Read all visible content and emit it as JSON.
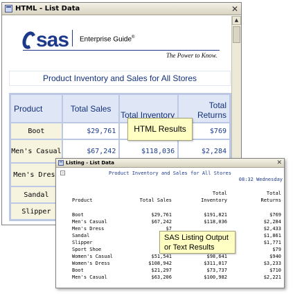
{
  "html_window": {
    "title": "HTML - List Data",
    "close_glyph": "✕",
    "product_name": "Enterprise Guide",
    "trademark": "®",
    "tagline": "The Power to Know.",
    "logo_text": "sas",
    "report_title": "Product Inventory and Sales for All Stores",
    "columns": [
      "Product",
      "Total Sales",
      "Total Inventory",
      "Total Returns"
    ],
    "rows": [
      {
        "product": "Boot",
        "sales": "$29,761",
        "inventory": "",
        "returns": "$769"
      },
      {
        "product": "Men's Casual",
        "sales": "$67,242",
        "inventory": "$118,036",
        "returns": "$2,284"
      },
      {
        "product": "Men's Dress",
        "sales": "",
        "inventory": "",
        "returns": ""
      },
      {
        "product": "Sandal",
        "sales": "",
        "inventory": "",
        "returns": ""
      },
      {
        "product": "Slipper",
        "sales": "",
        "inventory": "",
        "returns": ""
      }
    ],
    "callout": "HTML Results"
  },
  "listing_window": {
    "title": "Listing - List Data",
    "close_glyph": "✕",
    "collapse_glyph": "−",
    "report_title": "Product Inventory and Sales for All Stores",
    "timestamp": "08:32 Wednesday",
    "header_line1": {
      "inventory": "Total",
      "returns": "Total"
    },
    "header_line2": {
      "product": "Product",
      "sales": "Total Sales",
      "inventory": "Inventory",
      "returns": "Returns"
    },
    "rows": [
      {
        "product": "Boot",
        "sales": "$29,761",
        "inventory": "$191,821",
        "returns": "$769"
      },
      {
        "product": "Men's Casual",
        "sales": "$67,242",
        "inventory": "$118,036",
        "returns": "$2,284"
      },
      {
        "product": "Men's Dress",
        "sales": "$7",
        "inventory": "",
        "returns": "$2,433"
      },
      {
        "product": "Sandal",
        "sales": "$",
        "inventory": "",
        "returns": "$1,861"
      },
      {
        "product": "Slipper",
        "sales": "$6",
        "inventory": "",
        "returns": "$1,771"
      },
      {
        "product": "Sport Shoe",
        "sales": "$",
        "inventory": "",
        "returns": "$79"
      },
      {
        "product": "Women's Casual",
        "sales": "$51,541",
        "inventory": "$98,641",
        "returns": "$940"
      },
      {
        "product": "Women's Dress",
        "sales": "$108,942",
        "inventory": "$311,017",
        "returns": "$3,233"
      },
      {
        "product": "Boot",
        "sales": "$21,297",
        "inventory": "$73,737",
        "returns": "$710"
      },
      {
        "product": "Men's Casual",
        "sales": "$63,206",
        "inventory": "$100,982",
        "returns": "$2,221"
      }
    ],
    "callout": "SAS Listing Output or Text Results"
  }
}
